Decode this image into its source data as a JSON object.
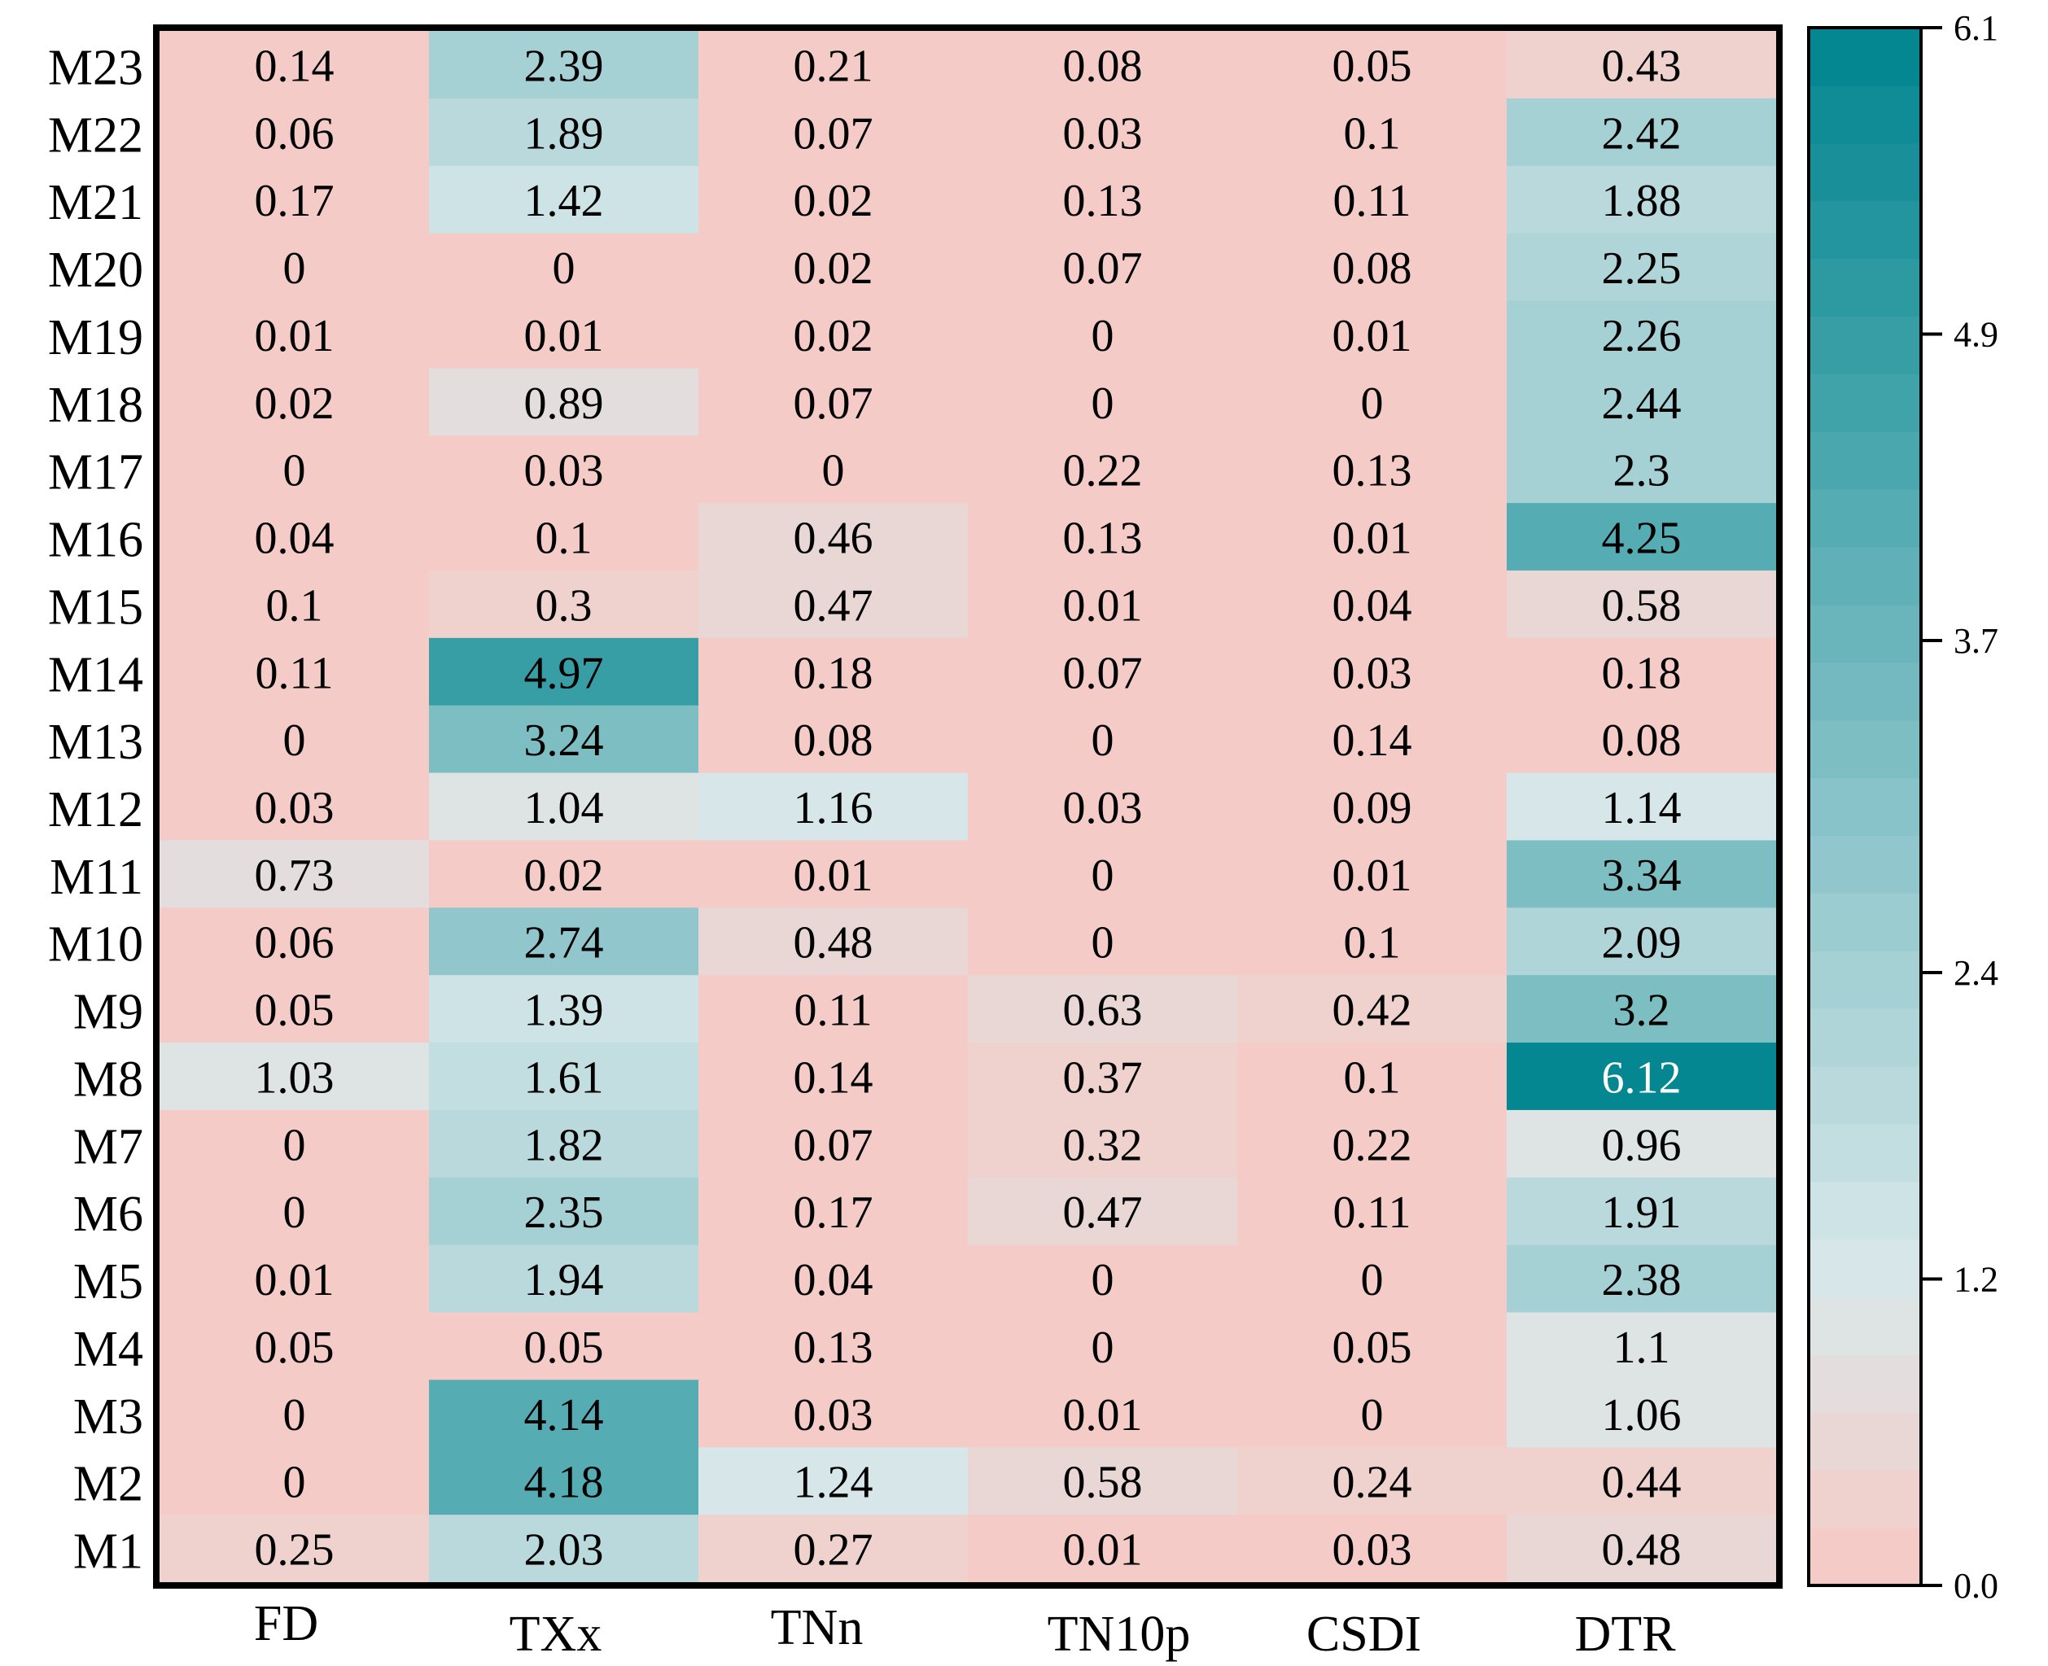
{
  "chart_data": {
    "type": "heatmap",
    "title": "",
    "xlabel": "",
    "ylabel": "",
    "columns": [
      "FD",
      "TXx",
      "TNn",
      "TN10p",
      "CSDI",
      "DTR"
    ],
    "rows": [
      "M23",
      "M22",
      "M21",
      "M20",
      "M19",
      "M18",
      "M17",
      "M16",
      "M15",
      "M14",
      "M13",
      "M12",
      "M11",
      "M10",
      "M9",
      "M8",
      "M7",
      "M6",
      "M5",
      "M4",
      "M3",
      "M2",
      "M1"
    ],
    "values": [
      [
        "0.14",
        "2.39",
        "0.21",
        "0.08",
        "0.05",
        "0.43"
      ],
      [
        "0.06",
        "1.89",
        "0.07",
        "0.03",
        "0.1",
        "2.42"
      ],
      [
        "0.17",
        "1.42",
        "0.02",
        "0.13",
        "0.11",
        "1.88"
      ],
      [
        "0",
        "0",
        "0.02",
        "0.07",
        "0.08",
        "2.25"
      ],
      [
        "0.01",
        "0.01",
        "0.02",
        "0",
        "0.01",
        "2.26"
      ],
      [
        "0.02",
        "0.89",
        "0.07",
        "0",
        "0",
        "2.44"
      ],
      [
        "0",
        "0.03",
        "0",
        "0.22",
        "0.13",
        "2.3"
      ],
      [
        "0.04",
        "0.1",
        "0.46",
        "0.13",
        "0.01",
        "4.25"
      ],
      [
        "0.1",
        "0.3",
        "0.47",
        "0.01",
        "0.04",
        "0.58"
      ],
      [
        "0.11",
        "4.97",
        "0.18",
        "0.07",
        "0.03",
        "0.18"
      ],
      [
        "0",
        "3.24",
        "0.08",
        "0",
        "0.14",
        "0.08"
      ],
      [
        "0.03",
        "1.04",
        "1.16",
        "0.03",
        "0.09",
        "1.14"
      ],
      [
        "0.73",
        "0.02",
        "0.01",
        "0",
        "0.01",
        "3.34"
      ],
      [
        "0.06",
        "2.74",
        "0.48",
        "0",
        "0.1",
        "2.09"
      ],
      [
        "0.05",
        "1.39",
        "0.11",
        "0.63",
        "0.42",
        "3.2"
      ],
      [
        "1.03",
        "1.61",
        "0.14",
        "0.37",
        "0.1",
        "6.12"
      ],
      [
        "0",
        "1.82",
        "0.07",
        "0.32",
        "0.22",
        "0.96"
      ],
      [
        "0",
        "2.35",
        "0.17",
        "0.47",
        "0.11",
        "1.91"
      ],
      [
        "0.01",
        "1.94",
        "0.04",
        "0",
        "0",
        "2.38"
      ],
      [
        "0.05",
        "0.05",
        "0.13",
        "0",
        "0.05",
        "1.1"
      ],
      [
        "0",
        "4.14",
        "0.03",
        "0.01",
        "0",
        "1.06"
      ],
      [
        "0",
        "4.18",
        "1.24",
        "0.58",
        "0.24",
        "0.44"
      ],
      [
        "0.25",
        "2.03",
        "0.27",
        "0.01",
        "0.03",
        "0.48"
      ]
    ],
    "colorbar": {
      "min": 0.0,
      "max": 6.1,
      "ticks": [
        "0.0",
        "1.2",
        "2.4",
        "3.7",
        "4.9",
        "6.1"
      ],
      "tick_values": [
        0.0,
        1.2,
        2.4,
        3.7,
        4.9,
        6.1
      ],
      "bands": 27,
      "color_low": "#f7c8c3",
      "color_mid": "#d9e8ea",
      "color_high": "#00858f",
      "mid_value": 1.2
    },
    "text_color_default": "#000000",
    "text_color_on_dark": "#ffffff"
  }
}
